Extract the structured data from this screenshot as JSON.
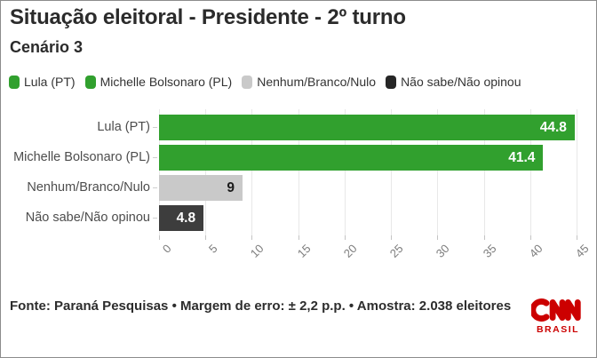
{
  "title": "Situação eleitoral - Presidente - 2º turno",
  "subtitle": "Cenário 3",
  "colors": {
    "green": "#31a02e",
    "light_gray": "#c9c9c9",
    "dark": "#3d3d3d",
    "legend_dark": "#262626",
    "brand_red": "#cc0000"
  },
  "legend": [
    {
      "label": "Lula (PT)",
      "color": "#31a02e"
    },
    {
      "label": "Michelle Bolsonaro (PL)",
      "color": "#31a02e"
    },
    {
      "label": "Nenhum/Branco/Nulo",
      "color": "#c9c9c9"
    },
    {
      "label": "Não sabe/Não opinou",
      "color": "#262626"
    }
  ],
  "chart_data": {
    "type": "bar",
    "orientation": "horizontal",
    "title": "Situação eleitoral - Presidente - 2º turno",
    "subtitle": "Cenário 3",
    "categories": [
      "Lula (PT)",
      "Michelle Bolsonaro (PL)",
      "Nenhum/Branco/Nulo",
      "Não sabe/Não opinou"
    ],
    "values": [
      44.8,
      41.4,
      9,
      4.8
    ],
    "value_labels": [
      "44.8",
      "41.4",
      "9",
      "4.8"
    ],
    "bar_colors": [
      "#31a02e",
      "#31a02e",
      "#c9c9c9",
      "#3d3d3d"
    ],
    "value_text_colors": [
      "#ffffff",
      "#ffffff",
      "#1a1a1a",
      "#ffffff"
    ],
    "xlabel": "",
    "ylabel": "",
    "xlim": [
      0,
      45
    ],
    "x_ticks": [
      0,
      5,
      10,
      15,
      20,
      25,
      30,
      35,
      40,
      45
    ],
    "grid": true,
    "legend_position": "top"
  },
  "footer": {
    "source": "Fonte: Paraná Pesquisas • Margem de erro: ± 2,2 p.p. • Amostra: 2.038 eleitores"
  },
  "logo": {
    "name": "CNN",
    "sub": "BRASIL"
  }
}
